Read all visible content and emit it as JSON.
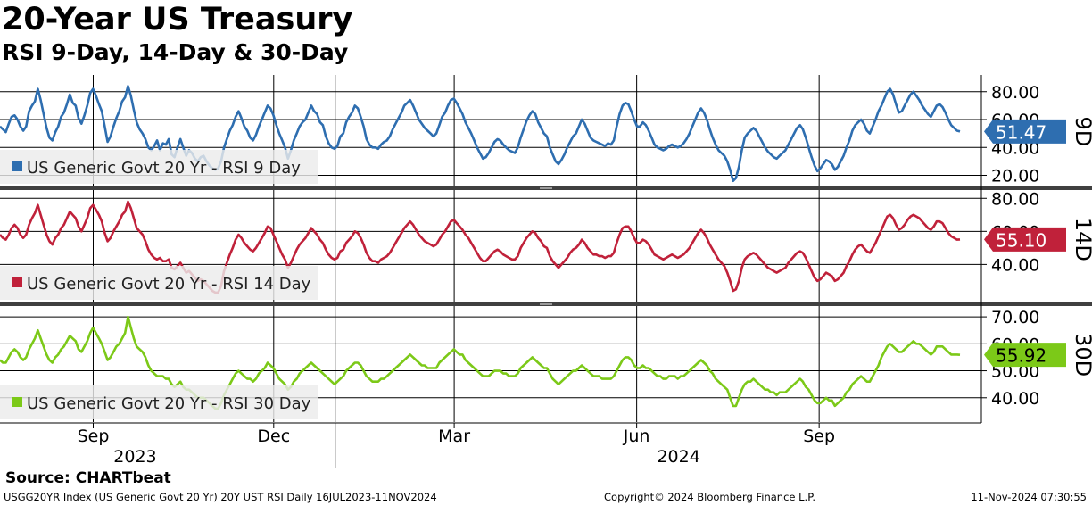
{
  "title": "20-Year US Treasury",
  "subtitle": "RSI 9-Day, 14-Day & 30-Day",
  "source": "Source: CHARTbeat",
  "footer": {
    "left": "USGG20YR Index (US Generic Govt 20 Yr) 20Y UST RSI  Daily 16JUL2023-11NOV2024",
    "center": "Copyright© 2024 Bloomberg Finance L.P.",
    "right": "11-Nov-2024 07:30:55"
  },
  "colors": {
    "rsi9": "#2e6eb0",
    "rsi14": "#c0213a",
    "rsi30": "#7cc918",
    "legend_bg": "#ebebeb",
    "separator": "#404040"
  },
  "chart_data": {
    "type": "line",
    "grid": true,
    "x_axis": {
      "ticks": [
        {
          "label": "Sep",
          "date": "2023-09-01"
        },
        {
          "label": "Dec",
          "date": "2023-12-01"
        },
        {
          "label": "Mar",
          "date": "2024-03-01"
        },
        {
          "label": "Jun",
          "date": "2024-06-01"
        },
        {
          "label": "Sep",
          "date": "2024-09-01"
        }
      ],
      "years": [
        {
          "label": "2023",
          "date": "2023-09-01"
        },
        {
          "label": "2024",
          "date": "2024-06-01"
        }
      ],
      "range": [
        "2023-07-16",
        "2024-11-11"
      ]
    },
    "panels": [
      {
        "series_name": "US Generic Govt 20 Yr - RSI 9 Day",
        "tag": "9D",
        "last_value": "51.47",
        "ylim": [
          12,
          92
        ],
        "yticks": [
          20,
          40,
          60,
          80
        ],
        "ytick_labels": [
          "20.00",
          "40.00",
          "60.00",
          "80.00"
        ],
        "legend_position": "bottom-left",
        "values": [
          55,
          53,
          51,
          57,
          62,
          63,
          60,
          55,
          52,
          55,
          66,
          70,
          73,
          82,
          74,
          64,
          54,
          47,
          45,
          51,
          55,
          62,
          65,
          71,
          78,
          72,
          70,
          61,
          57,
          63,
          70,
          79,
          82,
          77,
          71,
          66,
          55,
          44,
          48,
          55,
          61,
          66,
          73,
          76,
          84,
          77,
          67,
          58,
          53,
          50,
          46,
          40,
          38,
          41,
          45,
          38,
          43,
          42,
          46,
          35,
          33,
          40,
          46,
          40,
          34,
          38,
          36,
          32,
          30,
          33,
          34,
          30,
          27,
          25,
          24,
          25,
          30,
          40,
          46,
          52,
          56,
          62,
          66,
          61,
          55,
          52,
          47,
          45,
          49,
          55,
          60,
          65,
          70,
          68,
          63,
          56,
          50,
          45,
          40,
          32,
          38,
          45,
          50,
          55,
          58,
          60,
          65,
          70,
          66,
          64,
          58,
          56,
          48,
          43,
          40,
          39,
          41,
          48,
          50,
          58,
          62,
          65,
          70,
          68,
          62,
          55,
          46,
          42,
          40,
          40,
          39,
          42,
          44,
          45,
          48,
          53,
          57,
          61,
          65,
          70,
          72,
          74,
          70,
          65,
          60,
          57,
          54,
          52,
          50,
          48,
          50,
          56,
          62,
          65,
          70,
          74,
          75,
          72,
          68,
          64,
          58,
          54,
          50,
          45,
          40,
          36,
          32,
          33,
          36,
          40,
          44,
          46,
          45,
          42,
          40,
          38,
          37,
          36,
          40,
          47,
          53,
          59,
          63,
          66,
          64,
          58,
          54,
          50,
          48,
          40,
          35,
          30,
          28,
          31,
          35,
          40,
          44,
          48,
          50,
          55,
          60,
          57,
          52,
          47,
          45,
          44,
          43,
          42,
          41,
          43,
          42,
          45,
          55,
          64,
          70,
          72,
          71,
          66,
          60,
          55,
          55,
          58,
          56,
          52,
          47,
          42,
          40,
          39,
          38,
          39,
          41,
          42,
          41,
          40,
          41,
          43,
          46,
          50,
          55,
          60,
          65,
          68,
          65,
          60,
          53,
          47,
          42,
          38,
          36,
          34,
          30,
          24,
          16,
          18,
          26,
          38,
          47,
          50,
          52,
          54,
          52,
          48,
          44,
          40,
          37,
          35,
          33,
          32,
          34,
          36,
          38,
          42,
          46,
          50,
          54,
          56,
          53,
          47,
          40,
          33,
          27,
          23,
          25,
          28,
          31,
          30,
          28,
          24,
          26,
          30,
          34,
          40,
          45,
          52,
          56,
          58,
          60,
          57,
          52,
          50,
          55,
          60,
          66,
          70,
          75,
          80,
          82,
          78,
          71,
          65,
          66,
          70,
          74,
          78,
          80,
          77,
          74,
          70,
          67,
          64,
          62,
          66,
          70,
          71,
          69,
          65,
          60,
          56,
          54,
          52,
          51.47
        ]
      },
      {
        "series_name": "US Generic Govt 20 Yr - RSI 14 Day",
        "tag": "14D",
        "last_value": "55.10",
        "ylim": [
          17,
          85
        ],
        "yticks": [
          40,
          60,
          80
        ],
        "ytick_labels": [
          "40.00",
          "60.00",
          "80.00"
        ],
        "legend_position": "bottom-left",
        "values": [
          58,
          56,
          55,
          58,
          62,
          64,
          62,
          58,
          56,
          58,
          64,
          68,
          71,
          76,
          70,
          64,
          58,
          54,
          52,
          56,
          58,
          62,
          64,
          68,
          72,
          70,
          68,
          63,
          60,
          64,
          68,
          74,
          76,
          73,
          70,
          66,
          59,
          54,
          56,
          60,
          63,
          66,
          70,
          72,
          78,
          74,
          68,
          62,
          60,
          58,
          54,
          49,
          46,
          44,
          43,
          44,
          42,
          42,
          43,
          38,
          37,
          39,
          41,
          38,
          35,
          36,
          34,
          32,
          30,
          31,
          30,
          28,
          26,
          24,
          23,
          23,
          27,
          36,
          41,
          46,
          50,
          55,
          58,
          56,
          53,
          51,
          49,
          48,
          50,
          53,
          56,
          59,
          63,
          62,
          58,
          54,
          50,
          46,
          43,
          38,
          41,
          45,
          49,
          52,
          54,
          56,
          59,
          62,
          60,
          58,
          55,
          53,
          49,
          46,
          44,
          43,
          44,
          48,
          49,
          53,
          55,
          57,
          60,
          59,
          56,
          52,
          47,
          44,
          42,
          42,
          41,
          43,
          44,
          45,
          47,
          50,
          53,
          56,
          59,
          62,
          64,
          66,
          64,
          61,
          58,
          56,
          54,
          53,
          52,
          51,
          52,
          55,
          58,
          60,
          63,
          66,
          67,
          65,
          63,
          61,
          58,
          56,
          53,
          50,
          47,
          44,
          42,
          42,
          44,
          46,
          48,
          49,
          48,
          46,
          45,
          44,
          43,
          43,
          45,
          50,
          53,
          56,
          58,
          60,
          59,
          56,
          54,
          51,
          50,
          45,
          42,
          40,
          38,
          40,
          42,
          44,
          47,
          49,
          50,
          52,
          55,
          53,
          50,
          48,
          46,
          46,
          45,
          45,
          44,
          45,
          45,
          47,
          53,
          58,
          62,
          63,
          63,
          60,
          56,
          53,
          53,
          55,
          54,
          52,
          49,
          46,
          45,
          44,
          43,
          44,
          45,
          46,
          45,
          44,
          45,
          46,
          48,
          50,
          53,
          56,
          59,
          61,
          59,
          56,
          52,
          49,
          46,
          43,
          41,
          39,
          35,
          30,
          24,
          25,
          30,
          38,
          43,
          45,
          46,
          47,
          46,
          44,
          42,
          40,
          38,
          37,
          36,
          35,
          36,
          37,
          38,
          41,
          43,
          45,
          47,
          48,
          47,
          44,
          40,
          36,
          32,
          30,
          31,
          33,
          35,
          34,
          33,
          30,
          31,
          33,
          35,
          39,
          42,
          46,
          49,
          51,
          52,
          50,
          48,
          47,
          50,
          53,
          57,
          61,
          65,
          69,
          70,
          68,
          64,
          61,
          62,
          64,
          67,
          69,
          70,
          69,
          68,
          66,
          64,
          62,
          61,
          63,
          66,
          66,
          65,
          62,
          59,
          57,
          56,
          55,
          55.1
        ]
      },
      {
        "series_name": "US Generic Govt 20 Yr - RSI 30 Day",
        "tag": "30D",
        "last_value": "55.92",
        "ylim": [
          31,
          74
        ],
        "yticks": [
          40,
          50,
          60,
          70
        ],
        "ytick_labels": [
          "40.00",
          "50.00",
          "60.00",
          "70.00"
        ],
        "legend_position": "bottom-left",
        "values": [
          54,
          53,
          53,
          55,
          57,
          58,
          57,
          55,
          54,
          55,
          58,
          60,
          62,
          65,
          62,
          59,
          56,
          54,
          53,
          55,
          56,
          58,
          59,
          61,
          63,
          62,
          61,
          58,
          57,
          59,
          61,
          64,
          66,
          64,
          62,
          60,
          57,
          54,
          55,
          57,
          59,
          60,
          62,
          64,
          70,
          66,
          62,
          59,
          58,
          57,
          55,
          52,
          50,
          49,
          48,
          48,
          48,
          47,
          47,
          45,
          44,
          45,
          46,
          44,
          43,
          43,
          42,
          41,
          40,
          40,
          40,
          39,
          38,
          37,
          36,
          36,
          38,
          41,
          43,
          45,
          47,
          49,
          50,
          49,
          48,
          47,
          47,
          46,
          47,
          49,
          50,
          51,
          53,
          52,
          51,
          49,
          47,
          46,
          45,
          43,
          44,
          46,
          47,
          49,
          50,
          51,
          52,
          53,
          52,
          51,
          50,
          49,
          48,
          47,
          46,
          45,
          46,
          47,
          48,
          50,
          51,
          52,
          53,
          53,
          52,
          50,
          48,
          47,
          46,
          46,
          46,
          47,
          47,
          48,
          49,
          50,
          51,
          52,
          53,
          54,
          55,
          56,
          55,
          54,
          53,
          52,
          52,
          51,
          51,
          51,
          51,
          53,
          54,
          55,
          56,
          57,
          58,
          57,
          56,
          56,
          54,
          53,
          52,
          51,
          50,
          49,
          48,
          48,
          48,
          49,
          50,
          50,
          50,
          49,
          49,
          48,
          48,
          48,
          49,
          51,
          52,
          53,
          54,
          55,
          54,
          53,
          52,
          51,
          51,
          49,
          47,
          46,
          45,
          46,
          47,
          48,
          49,
          50,
          50,
          51,
          52,
          51,
          50,
          49,
          48,
          48,
          48,
          47,
          47,
          47,
          47,
          48,
          50,
          52,
          54,
          55,
          55,
          54,
          52,
          51,
          51,
          52,
          51,
          51,
          50,
          49,
          48,
          48,
          47,
          47,
          48,
          48,
          48,
          47,
          48,
          48,
          49,
          50,
          51,
          52,
          53,
          54,
          53,
          52,
          50,
          49,
          47,
          46,
          45,
          44,
          43,
          40,
          37,
          37,
          40,
          43,
          45,
          46,
          46,
          47,
          46,
          45,
          44,
          43,
          43,
          42,
          42,
          41,
          42,
          42,
          42,
          43,
          44,
          45,
          46,
          47,
          46,
          44,
          43,
          41,
          39,
          38,
          38,
          39,
          40,
          39,
          39,
          37,
          38,
          39,
          40,
          42,
          43,
          45,
          46,
          47,
          48,
          47,
          46,
          46,
          48,
          50,
          52,
          55,
          57,
          59,
          60,
          59,
          58,
          57,
          57,
          58,
          59,
          60,
          61,
          60,
          60,
          59,
          58,
          57,
          56,
          57,
          59,
          59,
          59,
          58,
          57,
          56,
          56,
          56,
          55.92
        ]
      }
    ]
  }
}
